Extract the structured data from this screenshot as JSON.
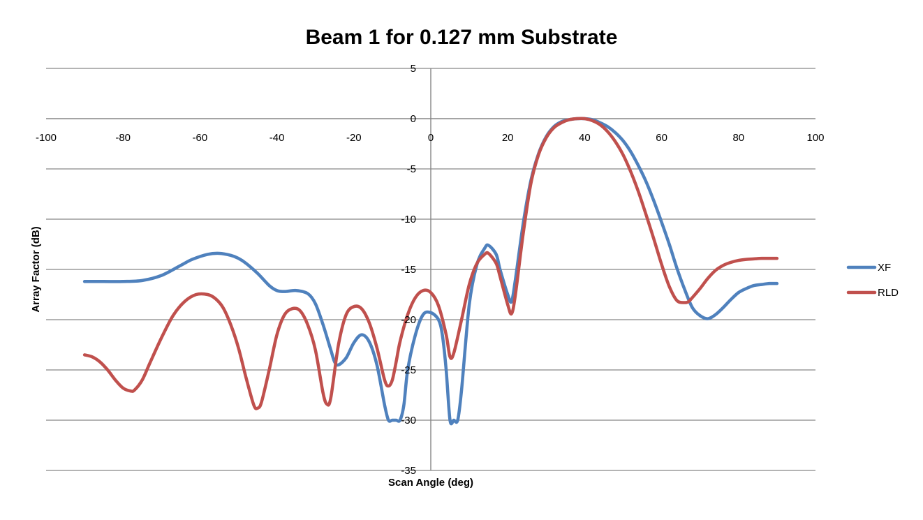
{
  "chart_data": {
    "type": "line",
    "title": "Beam 1 for 0.127 mm Substrate",
    "xlabel": "Scan Angle (deg)",
    "ylabel": "Array Factor (dB)",
    "xlim": [
      -100,
      100
    ],
    "ylim": [
      -35,
      5
    ],
    "xticks": [
      -100,
      -80,
      -60,
      -40,
      -20,
      0,
      20,
      40,
      60,
      80,
      100
    ],
    "yticks": [
      5,
      0,
      -5,
      -10,
      -15,
      -20,
      -25,
      -30,
      -35
    ],
    "grid": "horizontal",
    "legend_position": "right",
    "colors": {
      "XF": "#4F81BD",
      "RLD": "#C0504D",
      "grid": "#868686",
      "axis": "#868686"
    },
    "series": [
      {
        "name": "XF",
        "x": [
          -90,
          -85,
          -80,
          -75,
          -70,
          -65,
          -62,
          -58,
          -55,
          -52,
          -50,
          -48,
          -45,
          -42,
          -40,
          -38,
          -35,
          -32,
          -30,
          -28,
          -26,
          -25,
          -24,
          -22,
          -20,
          -18,
          -16,
          -14,
          -12,
          -11,
          -10,
          -9,
          -8,
          -7,
          -6,
          -4,
          -2,
          0,
          2,
          3,
          4,
          5,
          6,
          7,
          8,
          10,
          12,
          14,
          15,
          17,
          18,
          20,
          21,
          22,
          24,
          26,
          28,
          30,
          32,
          34,
          36,
          38,
          40,
          42,
          44,
          46,
          48,
          50,
          52,
          54,
          56,
          58,
          60,
          62,
          64,
          66,
          68,
          70,
          72,
          74,
          76,
          78,
          80,
          82,
          84,
          86,
          88,
          90
        ],
        "y": [
          -16.2,
          -16.2,
          -16.2,
          -16.1,
          -15.6,
          -14.6,
          -14,
          -13.5,
          -13.4,
          -13.6,
          -13.9,
          -14.4,
          -15.4,
          -16.6,
          -17.1,
          -17.2,
          -17.1,
          -17.4,
          -18.4,
          -20.5,
          -23,
          -24.2,
          -24.5,
          -23.8,
          -22.3,
          -21.5,
          -22.2,
          -24.5,
          -28.5,
          -30,
          -30,
          -30,
          -30,
          -28.5,
          -25,
          -21.5,
          -19.5,
          -19.3,
          -20,
          -21.5,
          -25,
          -30,
          -30,
          -30,
          -27,
          -18.5,
          -14.5,
          -12.9,
          -12.6,
          -13.5,
          -15,
          -17.5,
          -18.2,
          -16,
          -10.5,
          -6.2,
          -3.5,
          -1.8,
          -0.8,
          -0.3,
          -0.1,
          0,
          0,
          -0.1,
          -0.4,
          -0.8,
          -1.4,
          -2.2,
          -3.3,
          -4.7,
          -6.3,
          -8.2,
          -10.3,
          -12.5,
          -14.9,
          -17,
          -18.8,
          -19.6,
          -19.9,
          -19.5,
          -18.8,
          -18,
          -17.3,
          -16.9,
          -16.6,
          -16.5,
          -16.4,
          -16.4
        ]
      },
      {
        "name": "RLD",
        "x": [
          -90,
          -88,
          -86,
          -84,
          -82,
          -80,
          -78,
          -77,
          -75,
          -73,
          -70,
          -67,
          -64,
          -61,
          -58,
          -56,
          -54,
          -52,
          -50,
          -48,
          -46,
          -45,
          -44,
          -42,
          -40,
          -38,
          -36,
          -34,
          -32,
          -30,
          -28,
          -27,
          -26,
          -24,
          -22,
          -20,
          -18,
          -16,
          -14,
          -12,
          -11,
          -10,
          -9,
          -8,
          -6,
          -4,
          -2,
          0,
          2,
          4,
          5,
          6,
          8,
          10,
          12,
          14,
          15,
          17,
          18,
          20,
          21,
          22,
          24,
          26,
          28,
          30,
          32,
          34,
          36,
          38,
          40,
          42,
          44,
          46,
          48,
          50,
          52,
          54,
          56,
          58,
          60,
          62,
          64,
          66,
          67,
          68,
          70,
          72,
          74,
          76,
          78,
          80,
          82,
          84,
          86,
          88,
          90
        ],
        "y": [
          -23.5,
          -23.7,
          -24.2,
          -25,
          -26,
          -26.8,
          -27.1,
          -27,
          -26,
          -24.3,
          -21.8,
          -19.6,
          -18.2,
          -17.5,
          -17.5,
          -17.9,
          -18.8,
          -20.5,
          -22.8,
          -25.8,
          -28.5,
          -28.8,
          -28.2,
          -25,
          -21.5,
          -19.5,
          -18.9,
          -19.1,
          -20.5,
          -23,
          -27.3,
          -28.4,
          -27.8,
          -22.5,
          -19.5,
          -18.7,
          -18.9,
          -20.3,
          -22.8,
          -26,
          -26.6,
          -26,
          -24.2,
          -22.2,
          -19.5,
          -17.8,
          -17.1,
          -17.3,
          -18.6,
          -21.5,
          -23.7,
          -23.3,
          -20,
          -16.5,
          -14.4,
          -13.5,
          -13.4,
          -14.4,
          -15.7,
          -18.5,
          -19.4,
          -17.5,
          -11.5,
          -6.5,
          -3.6,
          -1.9,
          -0.9,
          -0.4,
          -0.1,
          0,
          0,
          -0.2,
          -0.6,
          -1.3,
          -2.3,
          -3.6,
          -5.3,
          -7.3,
          -9.6,
          -12,
          -14.5,
          -16.7,
          -18.1,
          -18.3,
          -18.2,
          -17.8,
          -16.9,
          -15.9,
          -15.1,
          -14.6,
          -14.3,
          -14.1,
          -14,
          -13.95,
          -13.9,
          -13.9,
          -13.9
        ]
      }
    ]
  }
}
